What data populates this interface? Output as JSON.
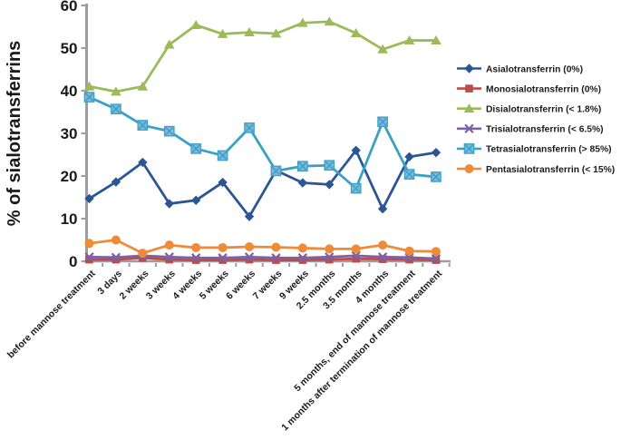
{
  "figure": {
    "background": "#ffffff",
    "axis_color": "#9d9d9d",
    "text_color": "#1a1a1a"
  },
  "chart_data": {
    "type": "line",
    "title": "",
    "xlabel": "",
    "ylabel": "% of sialotransferrins",
    "ylim": [
      0,
      60
    ],
    "yticks": [
      0,
      10,
      20,
      30,
      40,
      50,
      60
    ],
    "grid": false,
    "legend_position": "right",
    "categories": [
      "before mannose treatment",
      "3 days",
      "2 weeks",
      "3 weeks",
      "4 weeks",
      "5 weeks",
      "6 weeks",
      "7 weeks",
      "9 weeks",
      "2.5 months",
      "3.5 months",
      "4 months",
      "5 months, end of mannose treatment",
      "1 months after termination of mannose treatment"
    ],
    "series": [
      {
        "name": "Asialotransferrin (0%)",
        "marker": "diamond",
        "color": "#2b5694",
        "marker_fill": "#2b5694",
        "values": [
          14.7,
          18.6,
          23.2,
          13.5,
          14.3,
          18.5,
          10.5,
          21.3,
          18.4,
          18.0,
          26.0,
          12.3,
          24.5,
          25.5
        ]
      },
      {
        "name": "Monosialotransferrin (0%)",
        "marker": "square",
        "color": "#be4b48",
        "marker_fill": "#be4b48",
        "values": [
          0.4,
          0.4,
          0.8,
          0.4,
          0.3,
          0.3,
          0.4,
          0.3,
          0.3,
          0.4,
          0.6,
          0.5,
          0.4,
          0.3
        ]
      },
      {
        "name": "Disialotransferrin (< 1.8%)",
        "marker": "triangle",
        "color": "#9bbb59",
        "marker_fill": "#9bbb59",
        "values": [
          41.0,
          39.8,
          41.0,
          50.8,
          55.4,
          53.3,
          53.7,
          53.4,
          55.9,
          56.2,
          53.5,
          49.7,
          51.8,
          51.8
        ]
      },
      {
        "name": "Trisialotransferrin (< 6.5%)",
        "marker": "x",
        "color": "#7e62a1",
        "marker_fill": "#7e62a1",
        "values": [
          1.0,
          0.9,
          1.3,
          1.0,
          0.8,
          0.8,
          1.0,
          0.8,
          0.8,
          1.0,
          1.3,
          1.0,
          0.9,
          0.6
        ]
      },
      {
        "name": "Tetrasialotransferrin (> 85%)",
        "marker": "boxed-x",
        "color": "#3ba0c6",
        "marker_fill": "#7db9df",
        "values": [
          38.5,
          35.7,
          31.9,
          30.5,
          26.4,
          24.8,
          31.3,
          21.2,
          22.3,
          22.5,
          17.1,
          32.7,
          20.4,
          19.8
        ]
      },
      {
        "name": "Pentasialotransferrin (< 15%)",
        "marker": "circle",
        "color": "#ef8b38",
        "marker_fill": "#ef8b38",
        "values": [
          4.2,
          5.0,
          1.9,
          3.8,
          3.2,
          3.2,
          3.4,
          3.3,
          3.1,
          2.9,
          2.9,
          3.8,
          2.4,
          2.3
        ]
      }
    ]
  }
}
